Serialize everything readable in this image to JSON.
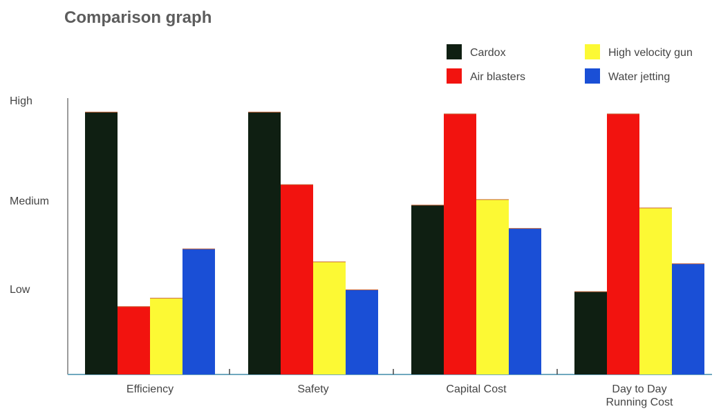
{
  "chart_data": {
    "type": "bar",
    "title": "Comparison graph",
    "xlabel": "",
    "ylabel": "",
    "categories": [
      [
        "Efficiency"
      ],
      [
        "Safety"
      ],
      [
        "Capital Cost"
      ],
      [
        "Day to Day",
        "Running Cost"
      ]
    ],
    "ylim": [
      0,
      3
    ],
    "y_tick_values": [
      1,
      2,
      3
    ],
    "y_tick_labels": [
      "Low",
      "Medium",
      "High"
    ],
    "grid": false,
    "legend_position": "top-right",
    "series": [
      {
        "name": "Cardox",
        "color": "#0f1f12",
        "values": [
          2.82,
          2.82,
          1.82,
          0.89
        ]
      },
      {
        "name": "Air blasters",
        "color": "#f2130f",
        "values": [
          0.73,
          2.04,
          2.8,
          2.8
        ]
      },
      {
        "name": "High velocity gun",
        "color": "#fcf934",
        "values": [
          0.82,
          1.21,
          1.88,
          1.79
        ]
      },
      {
        "name": "Water jetting",
        "color": "#1a4fd6",
        "values": [
          1.35,
          0.91,
          1.57,
          1.19
        ]
      }
    ],
    "legend_layout": [
      [
        "Cardox",
        "High velocity gun"
      ],
      [
        "Air blasters",
        "Water jetting"
      ]
    ]
  }
}
